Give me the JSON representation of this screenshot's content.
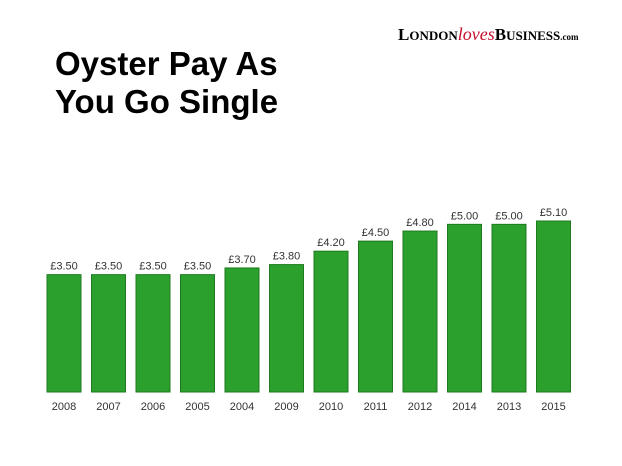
{
  "chart_data": {
    "type": "bar",
    "title_lines": [
      "Oyster Pay As",
      "You Go Single"
    ],
    "categories": [
      "2008",
      "2007",
      "2006",
      "2005",
      "2004",
      "2009",
      "2010",
      "2011",
      "2012",
      "2014",
      "2013",
      "2015"
    ],
    "values": [
      3.5,
      3.5,
      3.5,
      3.5,
      3.7,
      3.8,
      4.2,
      4.5,
      4.8,
      5.0,
      5.0,
      5.1
    ],
    "value_labels": [
      "£3.50",
      "£3.50",
      "£3.50",
      "£3.50",
      "£3.70",
      "£3.80",
      "£4.20",
      "£4.50",
      "£4.80",
      "£5.00",
      "£5.00",
      "£5.10"
    ],
    "ylim": [
      0,
      5.5
    ],
    "bar_color": "#2ca02c",
    "bar_border_color": "#1e7a1e",
    "grid": false,
    "legend": "none"
  },
  "brand": {
    "london_first": "L",
    "london_rest": "ONDON",
    "loves": "loves",
    "business_first": "B",
    "business_rest": "USINESS",
    "com": ".com",
    "accent_color": "#c8102e"
  }
}
